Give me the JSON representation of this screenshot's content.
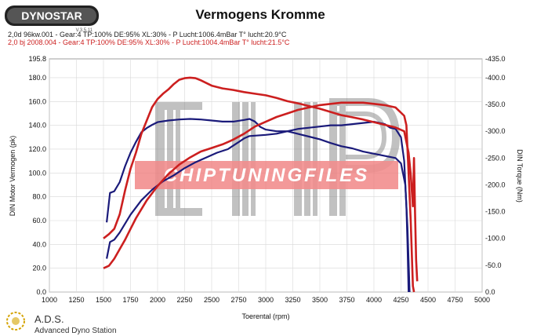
{
  "header": {
    "logo_text": "DYNOSTAR",
    "logo_sub": "V.3.5.11",
    "title": "Vermogens Kromme",
    "run1_info": "2,0d 96kw.001 - Gear:4 TP:100% DE:95% XL:30%   - P Lucht:1006.4mBar T° lucht:20.9°C",
    "run2_info": "2,0 bj 2008.004 - Gear:4 TP:100% DE:95% XL:30%    - P Lucht:1004.4mBar T° lucht:21.5°C"
  },
  "footer": {
    "brand": "A.D.S.",
    "brand_sub": "Advanced Dyno Station"
  },
  "watermark": {
    "text": "CHIPTUNINGFILES"
  },
  "colors": {
    "run1": "#1a1a7a",
    "run2": "#cc1f1f",
    "watermark_band": "#f07a7a",
    "watermark_text": "#ffffff"
  },
  "chart_data": {
    "type": "line",
    "xlabel": "Toerental (rpm)",
    "ylabel": "DIN Motor Vermogen (pk)",
    "y2label": "DIN Torque (Nm)",
    "xlim": [
      1000,
      5000
    ],
    "ylim": [
      0,
      195.8
    ],
    "y2lim": [
      0,
      435.0
    ],
    "x_ticks": [
      "1000",
      "1250",
      "1500",
      "1750",
      "2000",
      "2250",
      "2500",
      "2750",
      "3000",
      "3250",
      "3500",
      "3750",
      "4000",
      "4250",
      "4500",
      "4750",
      "5000"
    ],
    "y_ticks": [
      "0.0",
      "20.0",
      "40.0",
      "60.0",
      "80.0",
      "100.0",
      "120.0",
      "140.0",
      "160.0",
      "180.0",
      "195.8"
    ],
    "y2_ticks": [
      "0.0",
      "-50.0",
      "-100.0",
      "-150.0",
      "-200.0",
      "-250.0",
      "-300.0",
      "-350.0",
      "-400.0",
      "-435.0"
    ],
    "grid": true,
    "series": [
      {
        "run": "run1",
        "quantity": "power",
        "axis": "left",
        "points": [
          [
            1530,
            28
          ],
          [
            1560,
            42
          ],
          [
            1600,
            44
          ],
          [
            1650,
            50
          ],
          [
            1750,
            65
          ],
          [
            1850,
            77
          ],
          [
            1950,
            86
          ],
          [
            2050,
            93
          ],
          [
            2150,
            98
          ],
          [
            2250,
            104
          ],
          [
            2350,
            109
          ],
          [
            2450,
            113
          ],
          [
            2550,
            117
          ],
          [
            2650,
            120
          ],
          [
            2700,
            123
          ],
          [
            2750,
            126
          ],
          [
            2800,
            129
          ],
          [
            2850,
            131
          ],
          [
            3000,
            132
          ],
          [
            3100,
            133
          ],
          [
            3200,
            135
          ],
          [
            3300,
            137
          ],
          [
            3400,
            138
          ],
          [
            3500,
            139
          ],
          [
            3600,
            140
          ],
          [
            3700,
            140
          ],
          [
            3800,
            141
          ],
          [
            3900,
            142
          ],
          [
            4000,
            143
          ],
          [
            4100,
            141
          ],
          [
            4150,
            138
          ],
          [
            4200,
            137
          ],
          [
            4250,
            130
          ],
          [
            4280,
            110
          ],
          [
            4300,
            72
          ],
          [
            4310,
            40
          ],
          [
            4320,
            0
          ]
        ]
      },
      {
        "run": "run1",
        "quantity": "torque",
        "axis": "right",
        "points": [
          [
            1530,
            130
          ],
          [
            1560,
            185
          ],
          [
            1600,
            188
          ],
          [
            1650,
            205
          ],
          [
            1700,
            235
          ],
          [
            1750,
            260
          ],
          [
            1800,
            280
          ],
          [
            1850,
            298
          ],
          [
            1900,
            306
          ],
          [
            1950,
            312
          ],
          [
            2000,
            317
          ],
          [
            2100,
            320
          ],
          [
            2200,
            322
          ],
          [
            2300,
            323
          ],
          [
            2400,
            322
          ],
          [
            2500,
            320
          ],
          [
            2600,
            318
          ],
          [
            2700,
            318
          ],
          [
            2800,
            321
          ],
          [
            2850,
            323
          ],
          [
            2900,
            318
          ],
          [
            2950,
            308
          ],
          [
            3000,
            303
          ],
          [
            3100,
            300
          ],
          [
            3200,
            300
          ],
          [
            3300,
            295
          ],
          [
            3400,
            290
          ],
          [
            3500,
            285
          ],
          [
            3600,
            278
          ],
          [
            3700,
            272
          ],
          [
            3800,
            268
          ],
          [
            3900,
            262
          ],
          [
            4000,
            258
          ],
          [
            4100,
            254
          ],
          [
            4200,
            250
          ],
          [
            4250,
            240
          ],
          [
            4290,
            200
          ],
          [
            4310,
            120
          ],
          [
            4330,
            0
          ]
        ]
      },
      {
        "run": "run2",
        "quantity": "power",
        "axis": "left",
        "points": [
          [
            1500,
            20
          ],
          [
            1550,
            22
          ],
          [
            1600,
            28
          ],
          [
            1650,
            36
          ],
          [
            1700,
            44
          ],
          [
            1750,
            53
          ],
          [
            1800,
            62
          ],
          [
            1900,
            77
          ],
          [
            2000,
            89
          ],
          [
            2100,
            99
          ],
          [
            2200,
            107
          ],
          [
            2300,
            113
          ],
          [
            2400,
            118
          ],
          [
            2500,
            121
          ],
          [
            2600,
            124
          ],
          [
            2650,
            126
          ],
          [
            2700,
            128
          ],
          [
            2800,
            133
          ],
          [
            2900,
            139
          ],
          [
            3000,
            143
          ],
          [
            3100,
            147
          ],
          [
            3200,
            150
          ],
          [
            3300,
            153
          ],
          [
            3400,
            155
          ],
          [
            3500,
            157
          ],
          [
            3600,
            158
          ],
          [
            3700,
            159
          ],
          [
            3800,
            159
          ],
          [
            3900,
            159
          ],
          [
            4000,
            158
          ],
          [
            4100,
            157
          ],
          [
            4200,
            155
          ],
          [
            4280,
            148
          ],
          [
            4300,
            140
          ],
          [
            4320,
            100
          ],
          [
            4340,
            60
          ],
          [
            4360,
            5
          ],
          [
            4370,
            0
          ]
        ]
      },
      {
        "run": "run2",
        "quantity": "torque",
        "axis": "right",
        "points": [
          [
            1500,
            100
          ],
          [
            1550,
            108
          ],
          [
            1600,
            118
          ],
          [
            1650,
            145
          ],
          [
            1700,
            190
          ],
          [
            1750,
            230
          ],
          [
            1800,
            260
          ],
          [
            1850,
            295
          ],
          [
            1900,
            320
          ],
          [
            1950,
            345
          ],
          [
            2000,
            360
          ],
          [
            2050,
            370
          ],
          [
            2100,
            378
          ],
          [
            2150,
            388
          ],
          [
            2200,
            396
          ],
          [
            2250,
            399
          ],
          [
            2300,
            400
          ],
          [
            2350,
            399
          ],
          [
            2400,
            395
          ],
          [
            2500,
            385
          ],
          [
            2600,
            380
          ],
          [
            2700,
            377
          ],
          [
            2800,
            373
          ],
          [
            2900,
            370
          ],
          [
            3000,
            367
          ],
          [
            3100,
            362
          ],
          [
            3200,
            356
          ],
          [
            3300,
            352
          ],
          [
            3400,
            347
          ],
          [
            3500,
            342
          ],
          [
            3600,
            336
          ],
          [
            3700,
            330
          ],
          [
            3800,
            326
          ],
          [
            3900,
            322
          ],
          [
            4000,
            317
          ],
          [
            4100,
            312
          ],
          [
            4200,
            307
          ],
          [
            4280,
            300
          ],
          [
            4320,
            260
          ],
          [
            4340,
            220
          ],
          [
            4360,
            160
          ],
          [
            4370,
            250
          ],
          [
            4380,
            150
          ],
          [
            4390,
            60
          ],
          [
            4400,
            20
          ]
        ]
      }
    ]
  }
}
